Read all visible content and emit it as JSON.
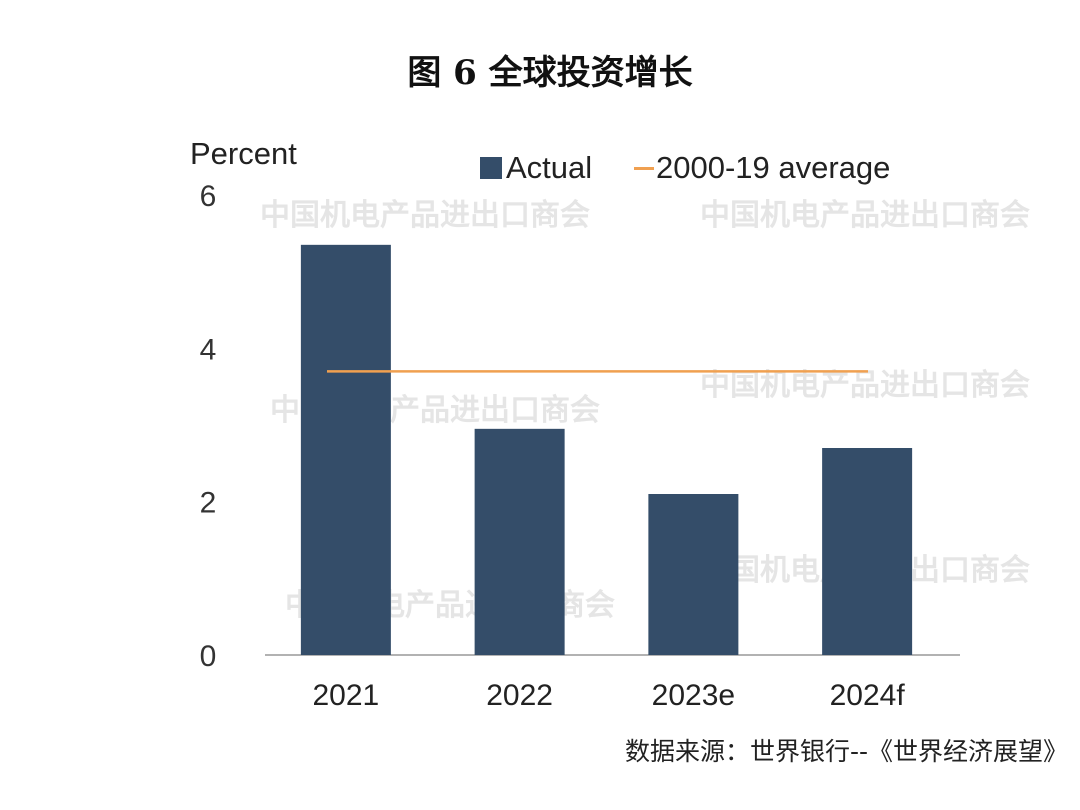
{
  "title": "图 6  全球投资增长",
  "source": "数据来源：世界银行--《世界经济展望》",
  "watermark": "中国机电产品进出口商会",
  "chart_data": {
    "type": "bar",
    "title": "",
    "ylabel": "Percent",
    "xlabel": "",
    "categories": [
      "2021",
      "2022",
      "2023e",
      "2024f"
    ],
    "series": [
      {
        "name": "Actual",
        "type": "bar",
        "values": [
          5.35,
          2.95,
          2.1,
          2.7
        ],
        "color": "#344d69"
      },
      {
        "name": "2000-19 average",
        "type": "line",
        "value": 3.7,
        "color": "#f0a050"
      }
    ],
    "ylim": [
      0,
      6
    ],
    "yticks": [
      "0",
      "2",
      "4",
      "6"
    ],
    "grid": false,
    "legend": "top"
  }
}
